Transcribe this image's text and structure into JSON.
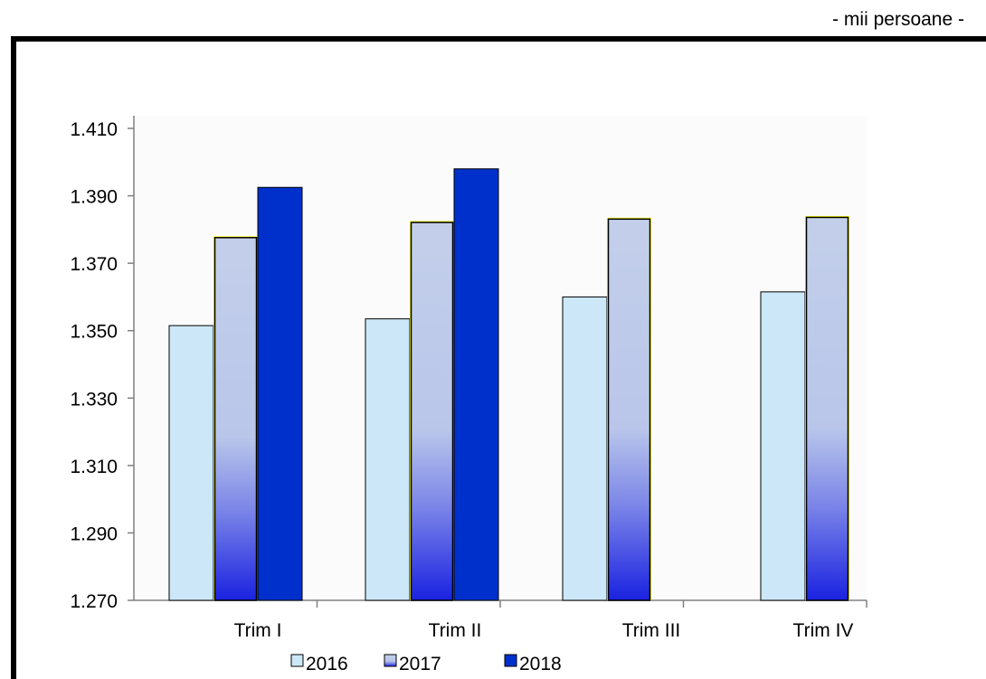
{
  "unit_label": "- mii persoane -",
  "chart_data": {
    "type": "bar",
    "categories": [
      "Trim I",
      "Trim II",
      "Trim III",
      "Trim IV"
    ],
    "series": [
      {
        "name": "2016",
        "values": [
          1351.5,
          1353.5,
          1360,
          1361.5
        ],
        "color": "#cce8f8"
      },
      {
        "name": "2017",
        "values": [
          1378,
          1382.5,
          1383.5,
          1384
        ],
        "color": "#c0cdea"
      },
      {
        "name": "2018",
        "values": [
          1392.5,
          1398,
          null,
          null
        ],
        "color": "#0030cc"
      }
    ],
    "yticks": [
      "1.270",
      "1.290",
      "1.310",
      "1.330",
      "1.350",
      "1.370",
      "1.390",
      "1.410"
    ],
    "ylim": [
      1270,
      1410
    ],
    "legend_position": "bottom",
    "grid": false
  }
}
